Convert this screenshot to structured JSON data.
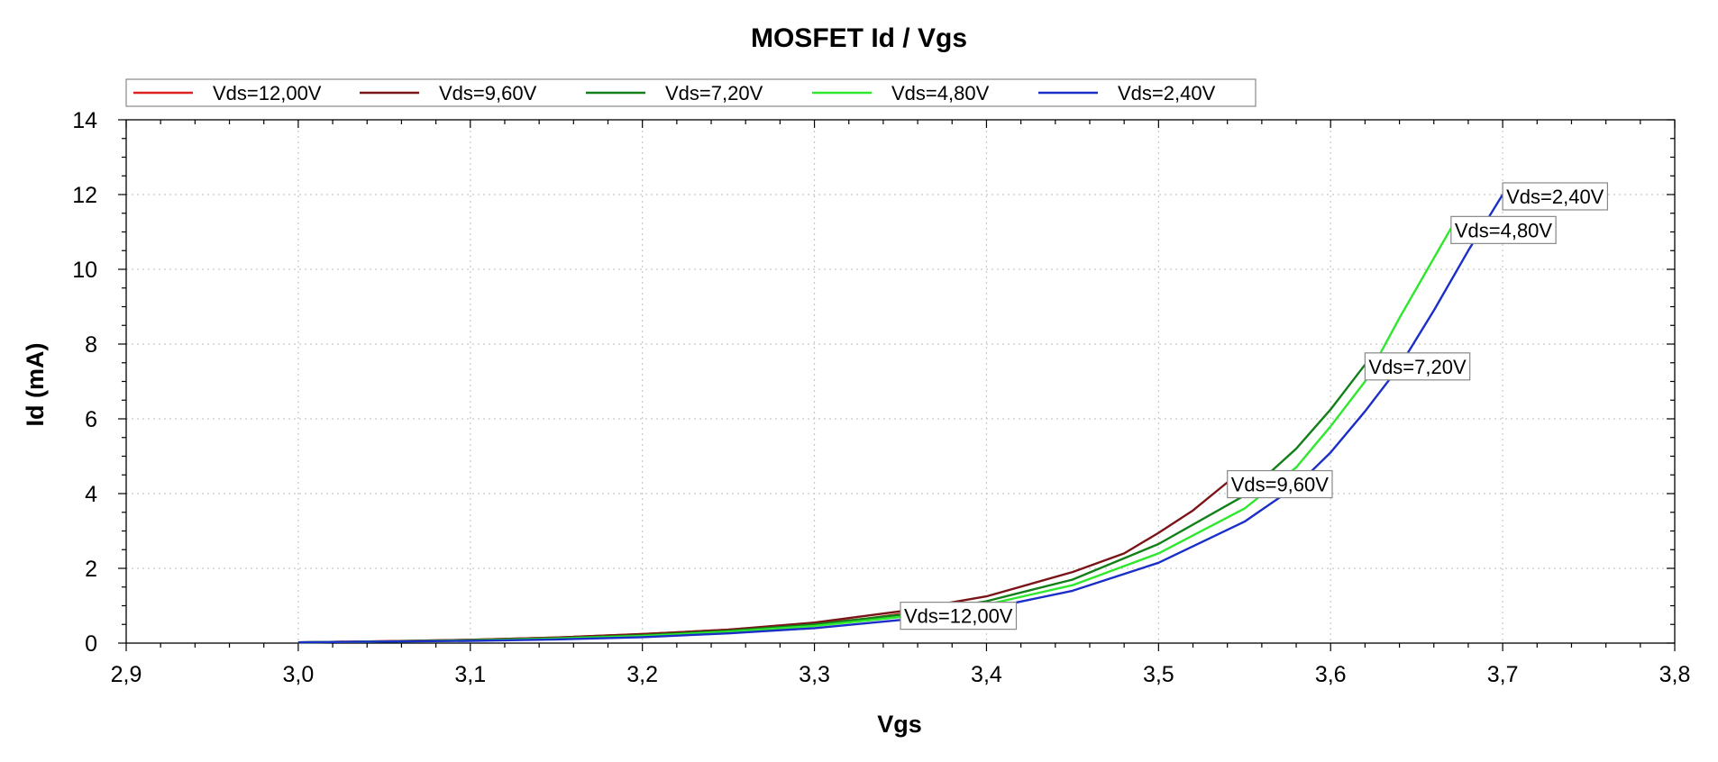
{
  "chart_data": {
    "type": "line",
    "title": "MOSFET Id / Vgs",
    "xlabel": "Vgs",
    "ylabel": "Id (mA)",
    "xlim": [
      2.9,
      3.8
    ],
    "ylim": [
      0,
      14
    ],
    "x_ticks": [
      "2,9",
      "3,0",
      "3,1",
      "3,2",
      "3,3",
      "3,4",
      "3,5",
      "3,6",
      "3,7",
      "3,8"
    ],
    "y_ticks": [
      "0",
      "2",
      "4",
      "6",
      "8",
      "10",
      "12",
      "14"
    ],
    "grid": true,
    "legend_position": "top-left, above plot",
    "series": [
      {
        "name": "Vds=12,00V",
        "color": "#e02020",
        "callout": "Vds=12,00V",
        "x": [
          3.0,
          3.05,
          3.1,
          3.15,
          3.2,
          3.25,
          3.3,
          3.33,
          3.35
        ],
        "y": [
          0.02,
          0.05,
          0.09,
          0.15,
          0.24,
          0.36,
          0.52,
          0.65,
          0.78
        ]
      },
      {
        "name": "Vds=9,60V",
        "color": "#7a1418",
        "callout": "Vds=9,60V",
        "x": [
          3.0,
          3.05,
          3.1,
          3.15,
          3.2,
          3.25,
          3.3,
          3.35,
          3.4,
          3.45,
          3.48,
          3.5,
          3.52,
          3.54
        ],
        "y": [
          0.02,
          0.05,
          0.09,
          0.15,
          0.24,
          0.36,
          0.55,
          0.85,
          1.25,
          1.9,
          2.4,
          2.95,
          3.55,
          4.3
        ]
      },
      {
        "name": "Vds=7,20V",
        "color": "#128018",
        "callout": "Vds=7,20V",
        "x": [
          3.0,
          3.05,
          3.1,
          3.15,
          3.2,
          3.25,
          3.3,
          3.35,
          3.4,
          3.45,
          3.5,
          3.55,
          3.58,
          3.6,
          3.62
        ],
        "y": [
          0.02,
          0.04,
          0.08,
          0.13,
          0.21,
          0.33,
          0.5,
          0.76,
          1.12,
          1.7,
          2.65,
          3.95,
          5.2,
          6.25,
          7.45
        ]
      },
      {
        "name": "Vds=4,80V",
        "color": "#2ee82e",
        "callout": "Vds=4,80V",
        "x": [
          3.0,
          3.05,
          3.1,
          3.15,
          3.2,
          3.25,
          3.3,
          3.35,
          3.4,
          3.45,
          3.5,
          3.55,
          3.58,
          3.6,
          3.62,
          3.64,
          3.66,
          3.67
        ],
        "y": [
          0.02,
          0.04,
          0.07,
          0.12,
          0.19,
          0.3,
          0.46,
          0.7,
          1.03,
          1.55,
          2.4,
          3.6,
          4.7,
          5.8,
          7.0,
          8.7,
          10.3,
          11.1
        ]
      },
      {
        "name": "Vds=2,40V",
        "color": "#1a2ec8",
        "callout": "Vds=2,40V",
        "x": [
          3.0,
          3.05,
          3.1,
          3.15,
          3.2,
          3.25,
          3.3,
          3.35,
          3.4,
          3.45,
          3.5,
          3.55,
          3.58,
          3.6,
          3.62,
          3.64,
          3.66,
          3.68,
          3.7
        ],
        "y": [
          0.02,
          0.04,
          0.06,
          0.1,
          0.16,
          0.26,
          0.4,
          0.62,
          0.92,
          1.4,
          2.15,
          3.25,
          4.2,
          5.1,
          6.2,
          7.4,
          8.9,
          10.5,
          12.0
        ]
      }
    ]
  }
}
